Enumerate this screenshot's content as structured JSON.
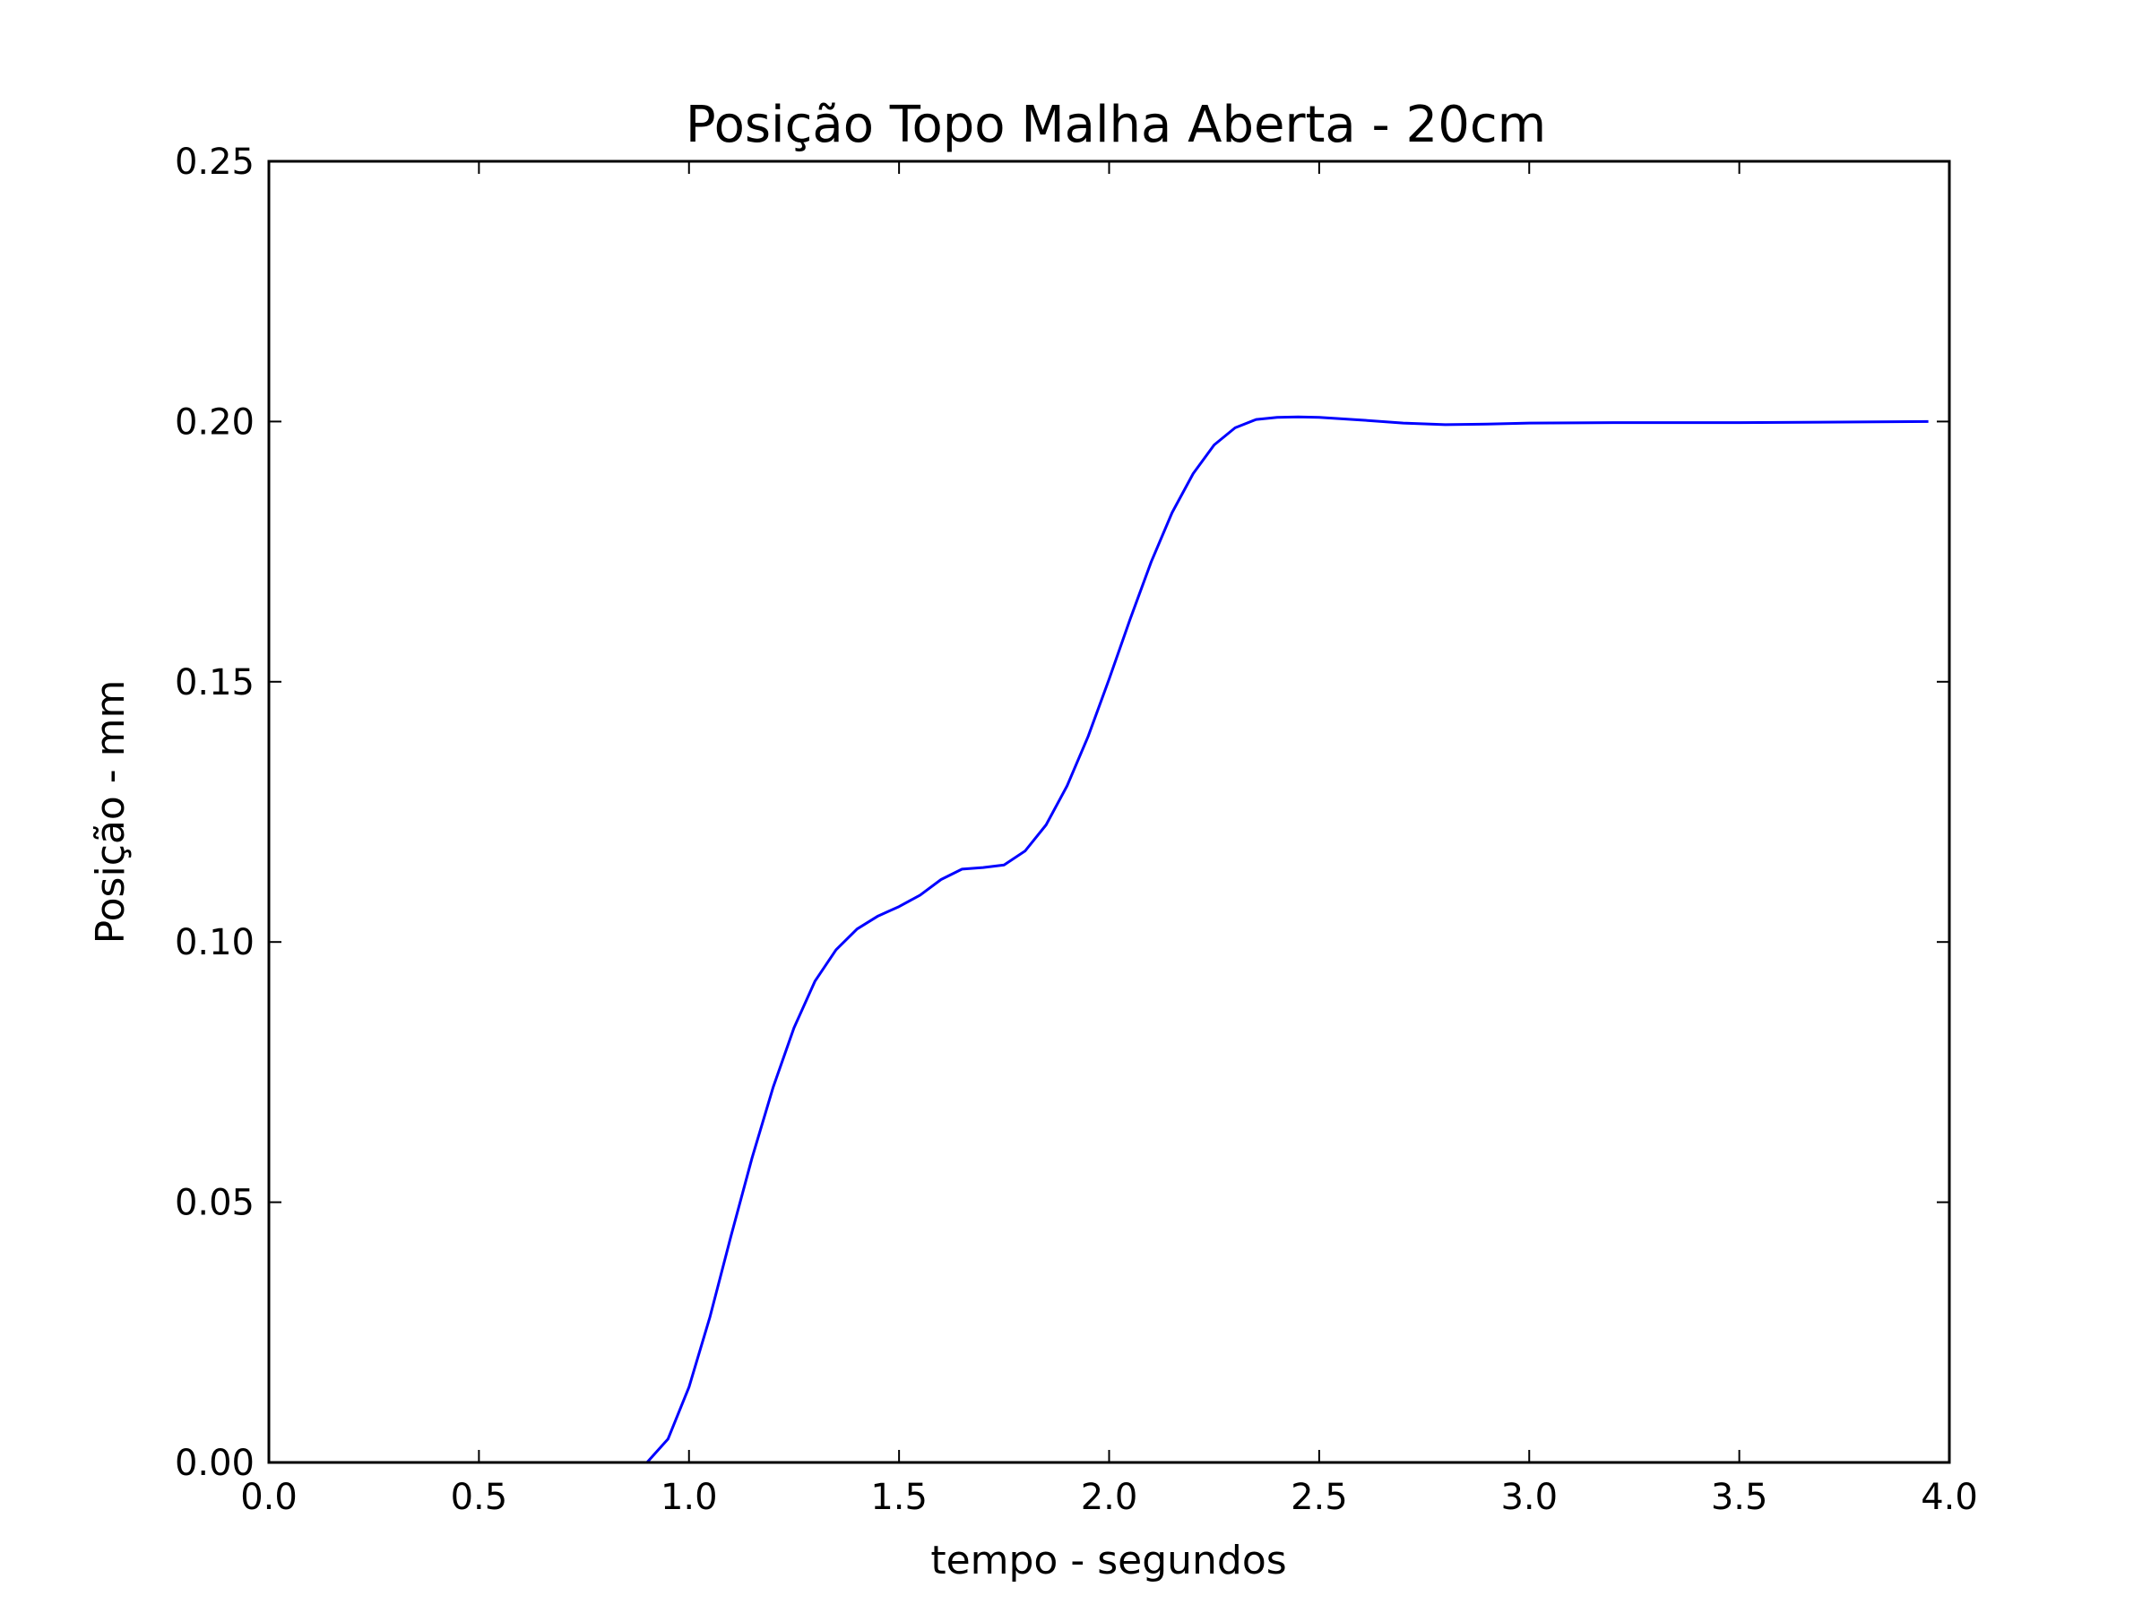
{
  "chart_data": {
    "type": "line",
    "title": "Posição Topo Malha Aberta - 20cm",
    "xlabel": "tempo - segundos",
    "ylabel": "Posição - mm",
    "xlim": [
      0.0,
      4.0
    ],
    "ylim": [
      0.0,
      0.25
    ],
    "xticks": [
      "0.0",
      "0.5",
      "1.0",
      "1.5",
      "2.0",
      "2.5",
      "3.0",
      "3.5",
      "4.0"
    ],
    "yticks": [
      "0.00",
      "0.05",
      "0.10",
      "0.15",
      "0.20",
      "0.25"
    ],
    "grid": false,
    "legend": "none",
    "line_color": "#0000ff",
    "series": [
      {
        "x": [
          0.9,
          0.95,
          1.0,
          1.05,
          1.1,
          1.15,
          1.2,
          1.25,
          1.3,
          1.35,
          1.4,
          1.45,
          1.5,
          1.55,
          1.6,
          1.65,
          1.7,
          1.75,
          1.8,
          1.85,
          1.9,
          1.95,
          2.0,
          2.05,
          2.1,
          2.15,
          2.2,
          2.25,
          2.3,
          2.35,
          2.4,
          2.45,
          2.5,
          2.6,
          2.7,
          2.8,
          2.9,
          3.0,
          3.2,
          3.5,
          3.95
        ],
        "y": [
          0.0,
          0.0045,
          0.0145,
          0.028,
          0.0435,
          0.0585,
          0.072,
          0.0835,
          0.0925,
          0.0985,
          0.1025,
          0.105,
          0.1068,
          0.109,
          0.112,
          0.114,
          0.1143,
          0.1148,
          0.1175,
          0.1225,
          0.13,
          0.1395,
          0.1505,
          0.162,
          0.173,
          0.1825,
          0.19,
          0.1955,
          0.1988,
          0.2004,
          0.2008,
          0.2009,
          0.2008,
          0.2003,
          0.1997,
          0.1994,
          0.1995,
          0.1997,
          0.1998,
          0.1998,
          0.2
        ]
      }
    ]
  }
}
